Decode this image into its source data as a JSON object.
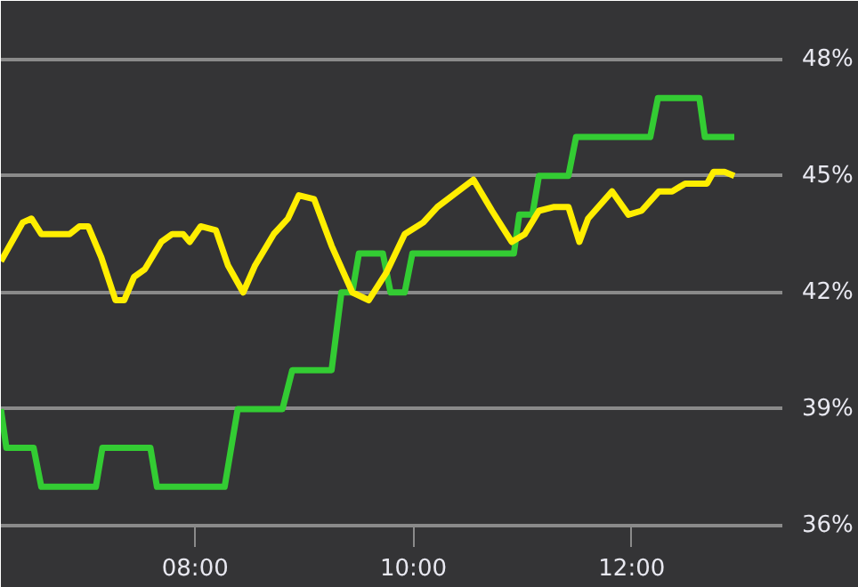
{
  "chart_data": {
    "type": "line",
    "xlim": [
      6.22,
      13.38
    ],
    "ylim": [
      36,
      49.5
    ],
    "xticks": [
      {
        "value": 8,
        "label": "08:00"
      },
      {
        "value": 10,
        "label": "10:00"
      },
      {
        "value": 12,
        "label": "12:00"
      }
    ],
    "yticks": [
      {
        "value": 36,
        "label": "36%"
      },
      {
        "value": 39,
        "label": "39%"
      },
      {
        "value": 42,
        "label": "42%"
      },
      {
        "value": 45,
        "label": "45%"
      },
      {
        "value": 48,
        "label": "48%"
      }
    ],
    "grid": "y",
    "marker": "none",
    "line_style": "solid",
    "series": [
      {
        "color": "#33cc33",
        "x": [
          6.22,
          6.27,
          6.52,
          6.59,
          7.09,
          7.15,
          7.59,
          7.65,
          8.27,
          8.39,
          8.8,
          8.89,
          9.25,
          9.34,
          9.44,
          9.5,
          9.72,
          9.79,
          9.92,
          9.99,
          10.92,
          10.97,
          11.09,
          11.15,
          11.42,
          11.49,
          12.17,
          12.24,
          12.62,
          12.67,
          12.94
        ],
        "values": [
          39,
          38,
          38,
          37,
          37,
          38,
          38,
          37,
          37,
          39,
          39,
          40,
          40,
          42,
          42,
          43,
          43,
          42,
          42,
          43,
          43,
          44,
          44,
          45,
          45,
          46,
          46,
          47,
          47,
          46,
          46
        ]
      },
      {
        "color": "#ffee00",
        "x": [
          6.22,
          6.3,
          6.42,
          6.5,
          6.59,
          6.85,
          6.94,
          7.02,
          7.14,
          7.27,
          7.35,
          7.44,
          7.54,
          7.69,
          7.79,
          7.89,
          7.95,
          8.05,
          8.19,
          8.3,
          8.44,
          8.55,
          8.72,
          8.85,
          8.95,
          9.09,
          9.25,
          9.44,
          9.59,
          9.75,
          9.92,
          10.09,
          10.22,
          10.55,
          10.72,
          10.9,
          11.02,
          11.15,
          11.29,
          11.42,
          11.52,
          11.6,
          11.82,
          11.97,
          12.09,
          12.25,
          12.37,
          12.49,
          12.69,
          12.75,
          12.85,
          12.94
        ],
        "values": [
          42.8,
          43.2,
          43.8,
          43.9,
          43.5,
          43.5,
          43.7,
          43.7,
          42.9,
          41.8,
          41.8,
          42.4,
          42.6,
          43.3,
          43.5,
          43.5,
          43.3,
          43.7,
          43.6,
          42.7,
          42.0,
          42.7,
          43.5,
          43.9,
          44.5,
          44.4,
          43.2,
          42.0,
          41.8,
          42.5,
          43.5,
          43.8,
          44.2,
          44.9,
          44.1,
          43.3,
          43.5,
          44.1,
          44.2,
          44.2,
          43.3,
          43.9,
          44.6,
          44.0,
          44.1,
          44.6,
          44.6,
          44.8,
          44.8,
          45.1,
          45.1,
          45.0
        ]
      }
    ]
  }
}
